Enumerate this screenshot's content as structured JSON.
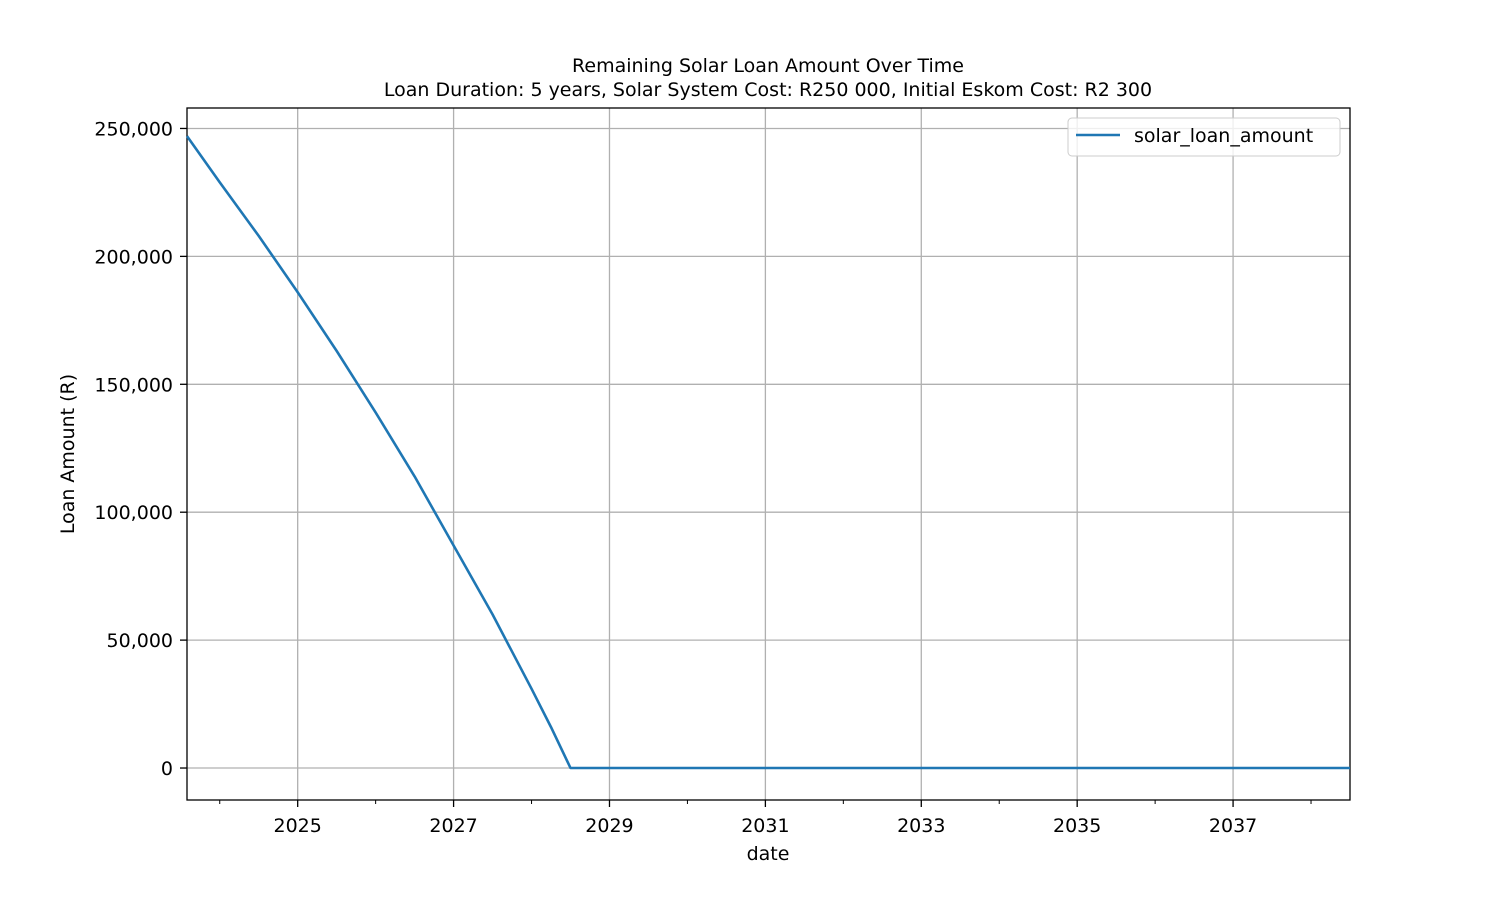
{
  "chart_data": {
    "type": "line",
    "title": "Remaining Solar Loan Amount Over Time",
    "subtitle": "Loan Duration: 5 years, Solar System Cost: R250 000, Initial Eskom Cost: R2 300",
    "xlabel": "date",
    "ylabel": "Loan Amount (R)",
    "xlim": [
      2023.58,
      2038.5
    ],
    "ylim": [
      -12500,
      258000
    ],
    "x_ticks": [
      2025,
      2027,
      2029,
      2031,
      2033,
      2035,
      2037
    ],
    "x_tick_labels": [
      "2025",
      "2027",
      "2029",
      "2031",
      "2033",
      "2035",
      "2037"
    ],
    "x_minor_ticks": [
      2024,
      2026,
      2028,
      2030,
      2032,
      2034,
      2036,
      2038
    ],
    "y_ticks": [
      0,
      50000,
      100000,
      150000,
      200000,
      250000
    ],
    "y_tick_labels": [
      "0",
      "50,000",
      "100,000",
      "150,000",
      "200,000",
      "250,000"
    ],
    "grid": true,
    "legend": "top-right",
    "color": "#1f77b4",
    "series": [
      {
        "name": "solar_loan_amount",
        "x": [
          2023.58,
          2024.0,
          2024.5,
          2025.0,
          2025.5,
          2026.0,
          2026.5,
          2027.0,
          2027.5,
          2028.0,
          2028.25,
          2028.5,
          2029.0,
          2030.0,
          2031.0,
          2032.0,
          2033.0,
          2034.0,
          2035.0,
          2036.0,
          2037.0,
          2038.0,
          2038.5
        ],
        "y": [
          247000,
          229000,
          208000,
          186000,
          163000,
          139000,
          114000,
          87000,
          60000,
          31000,
          16000,
          0,
          0,
          0,
          0,
          0,
          0,
          0,
          0,
          0,
          0,
          0,
          0
        ]
      }
    ]
  }
}
